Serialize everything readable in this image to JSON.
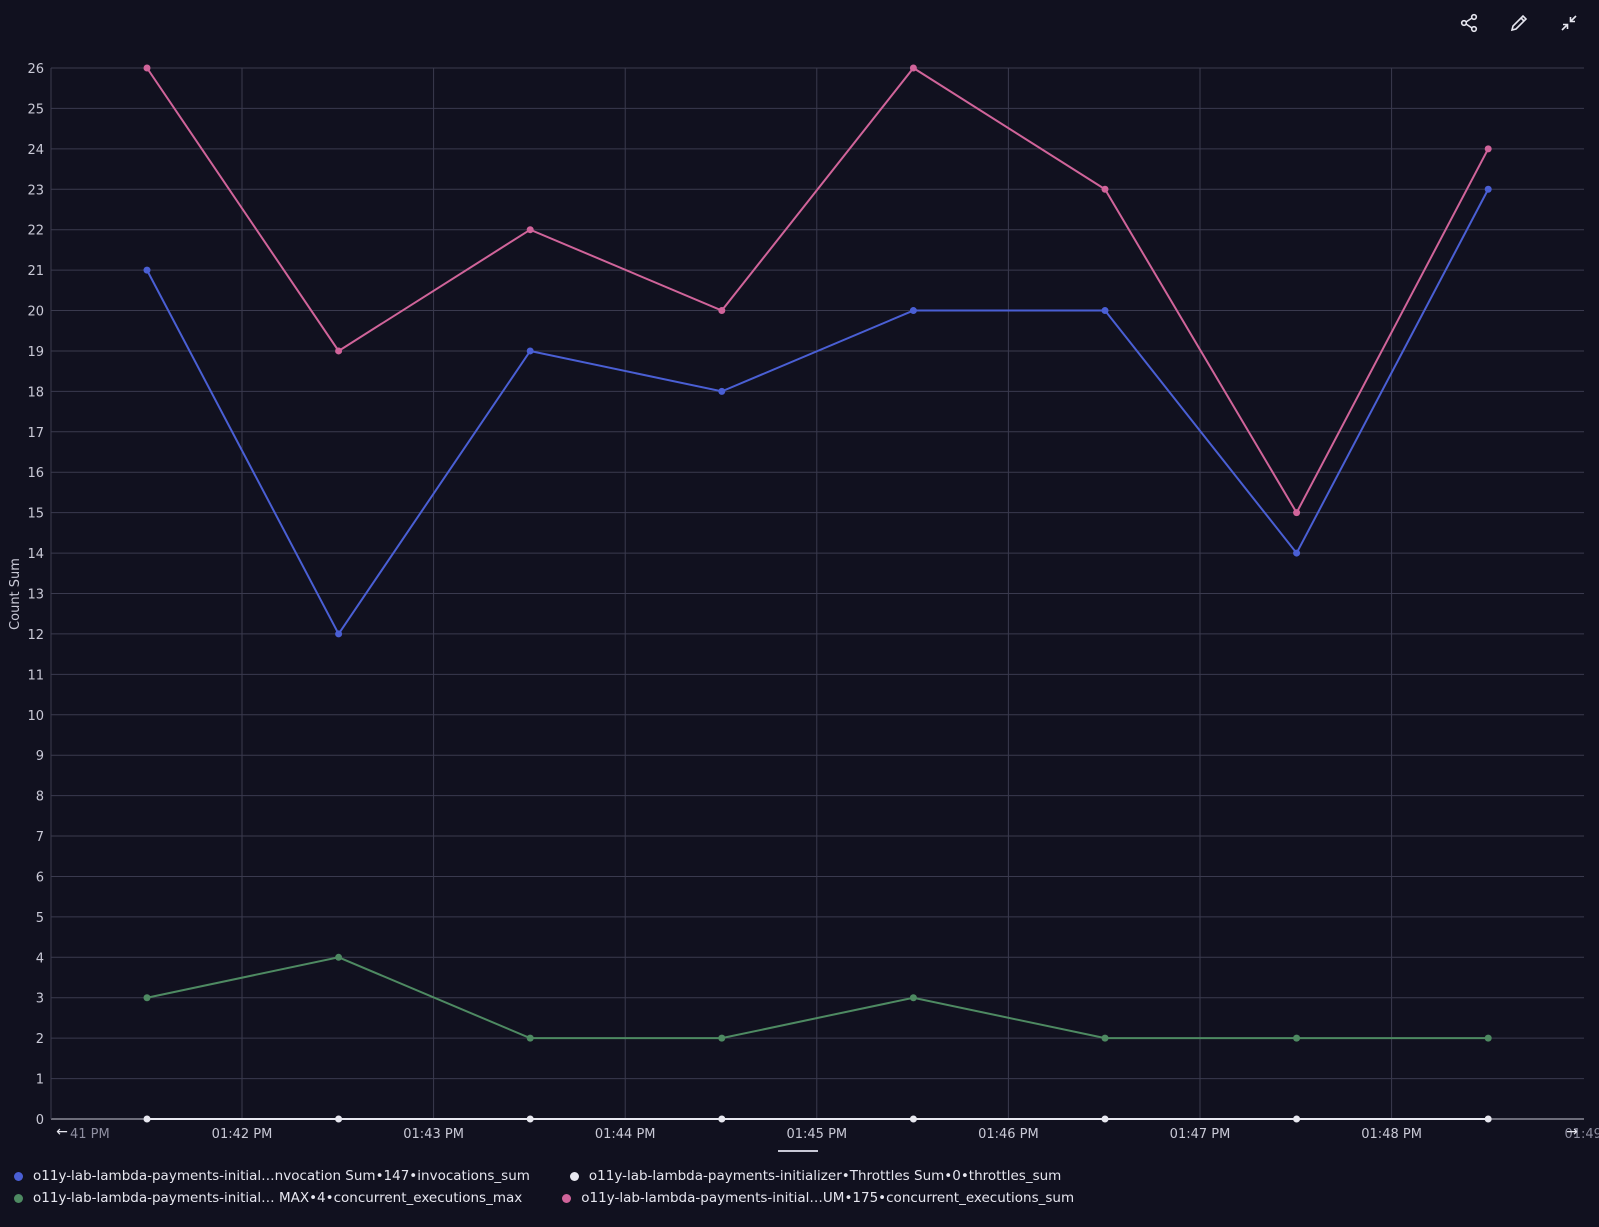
{
  "toolbar": {
    "share_icon": "share-icon",
    "edit_icon": "pencil-icon",
    "collapse_icon": "collapse-icon"
  },
  "chart_data": {
    "type": "line",
    "ylabel": "Count Sum",
    "ylim": [
      0,
      26
    ],
    "yticks": [
      0,
      1,
      2,
      3,
      4,
      5,
      6,
      7,
      8,
      9,
      10,
      11,
      12,
      13,
      14,
      15,
      16,
      17,
      18,
      19,
      20,
      21,
      22,
      23,
      24,
      25,
      26
    ],
    "xtick_labels": [
      "41 PM",
      "01:42 PM",
      "01:43 PM",
      "01:44 PM",
      "01:45 PM",
      "01:46 PM",
      "01:47 PM",
      "01:48 PM",
      "01:49"
    ],
    "x": [
      "01:41:30 PM",
      "01:42:30 PM",
      "01:43:30 PM",
      "01:44:30 PM",
      "01:45:30 PM",
      "01:46:30 PM",
      "01:47:30 PM",
      "01:48:30 PM"
    ],
    "grid": true,
    "legend_position": "bottom",
    "series": [
      {
        "name": "o11y-lab-lambda-payments-initial…nvocation Sum•147•invocations_sum",
        "color": "#4a5fd4",
        "values": [
          21,
          12,
          19,
          18,
          20,
          20,
          14,
          23
        ]
      },
      {
        "name": "o11y-lab-lambda-payments-initializer•Throttles Sum•0•throttles_sum",
        "color": "#e8e8f0",
        "values": [
          0,
          0,
          0,
          0,
          0,
          0,
          0,
          0
        ]
      },
      {
        "name": "o11y-lab-lambda-payments-initial… MAX•4•concurrent_executions_max",
        "color": "#4e8a62",
        "values": [
          3,
          4,
          2,
          2,
          3,
          2,
          2,
          2
        ]
      },
      {
        "name": "o11y-lab-lambda-payments-initial…UM•175•concurrent_executions_sum",
        "color": "#d0649a",
        "values": [
          26,
          19,
          22,
          20,
          26,
          23,
          15,
          24
        ]
      }
    ]
  }
}
